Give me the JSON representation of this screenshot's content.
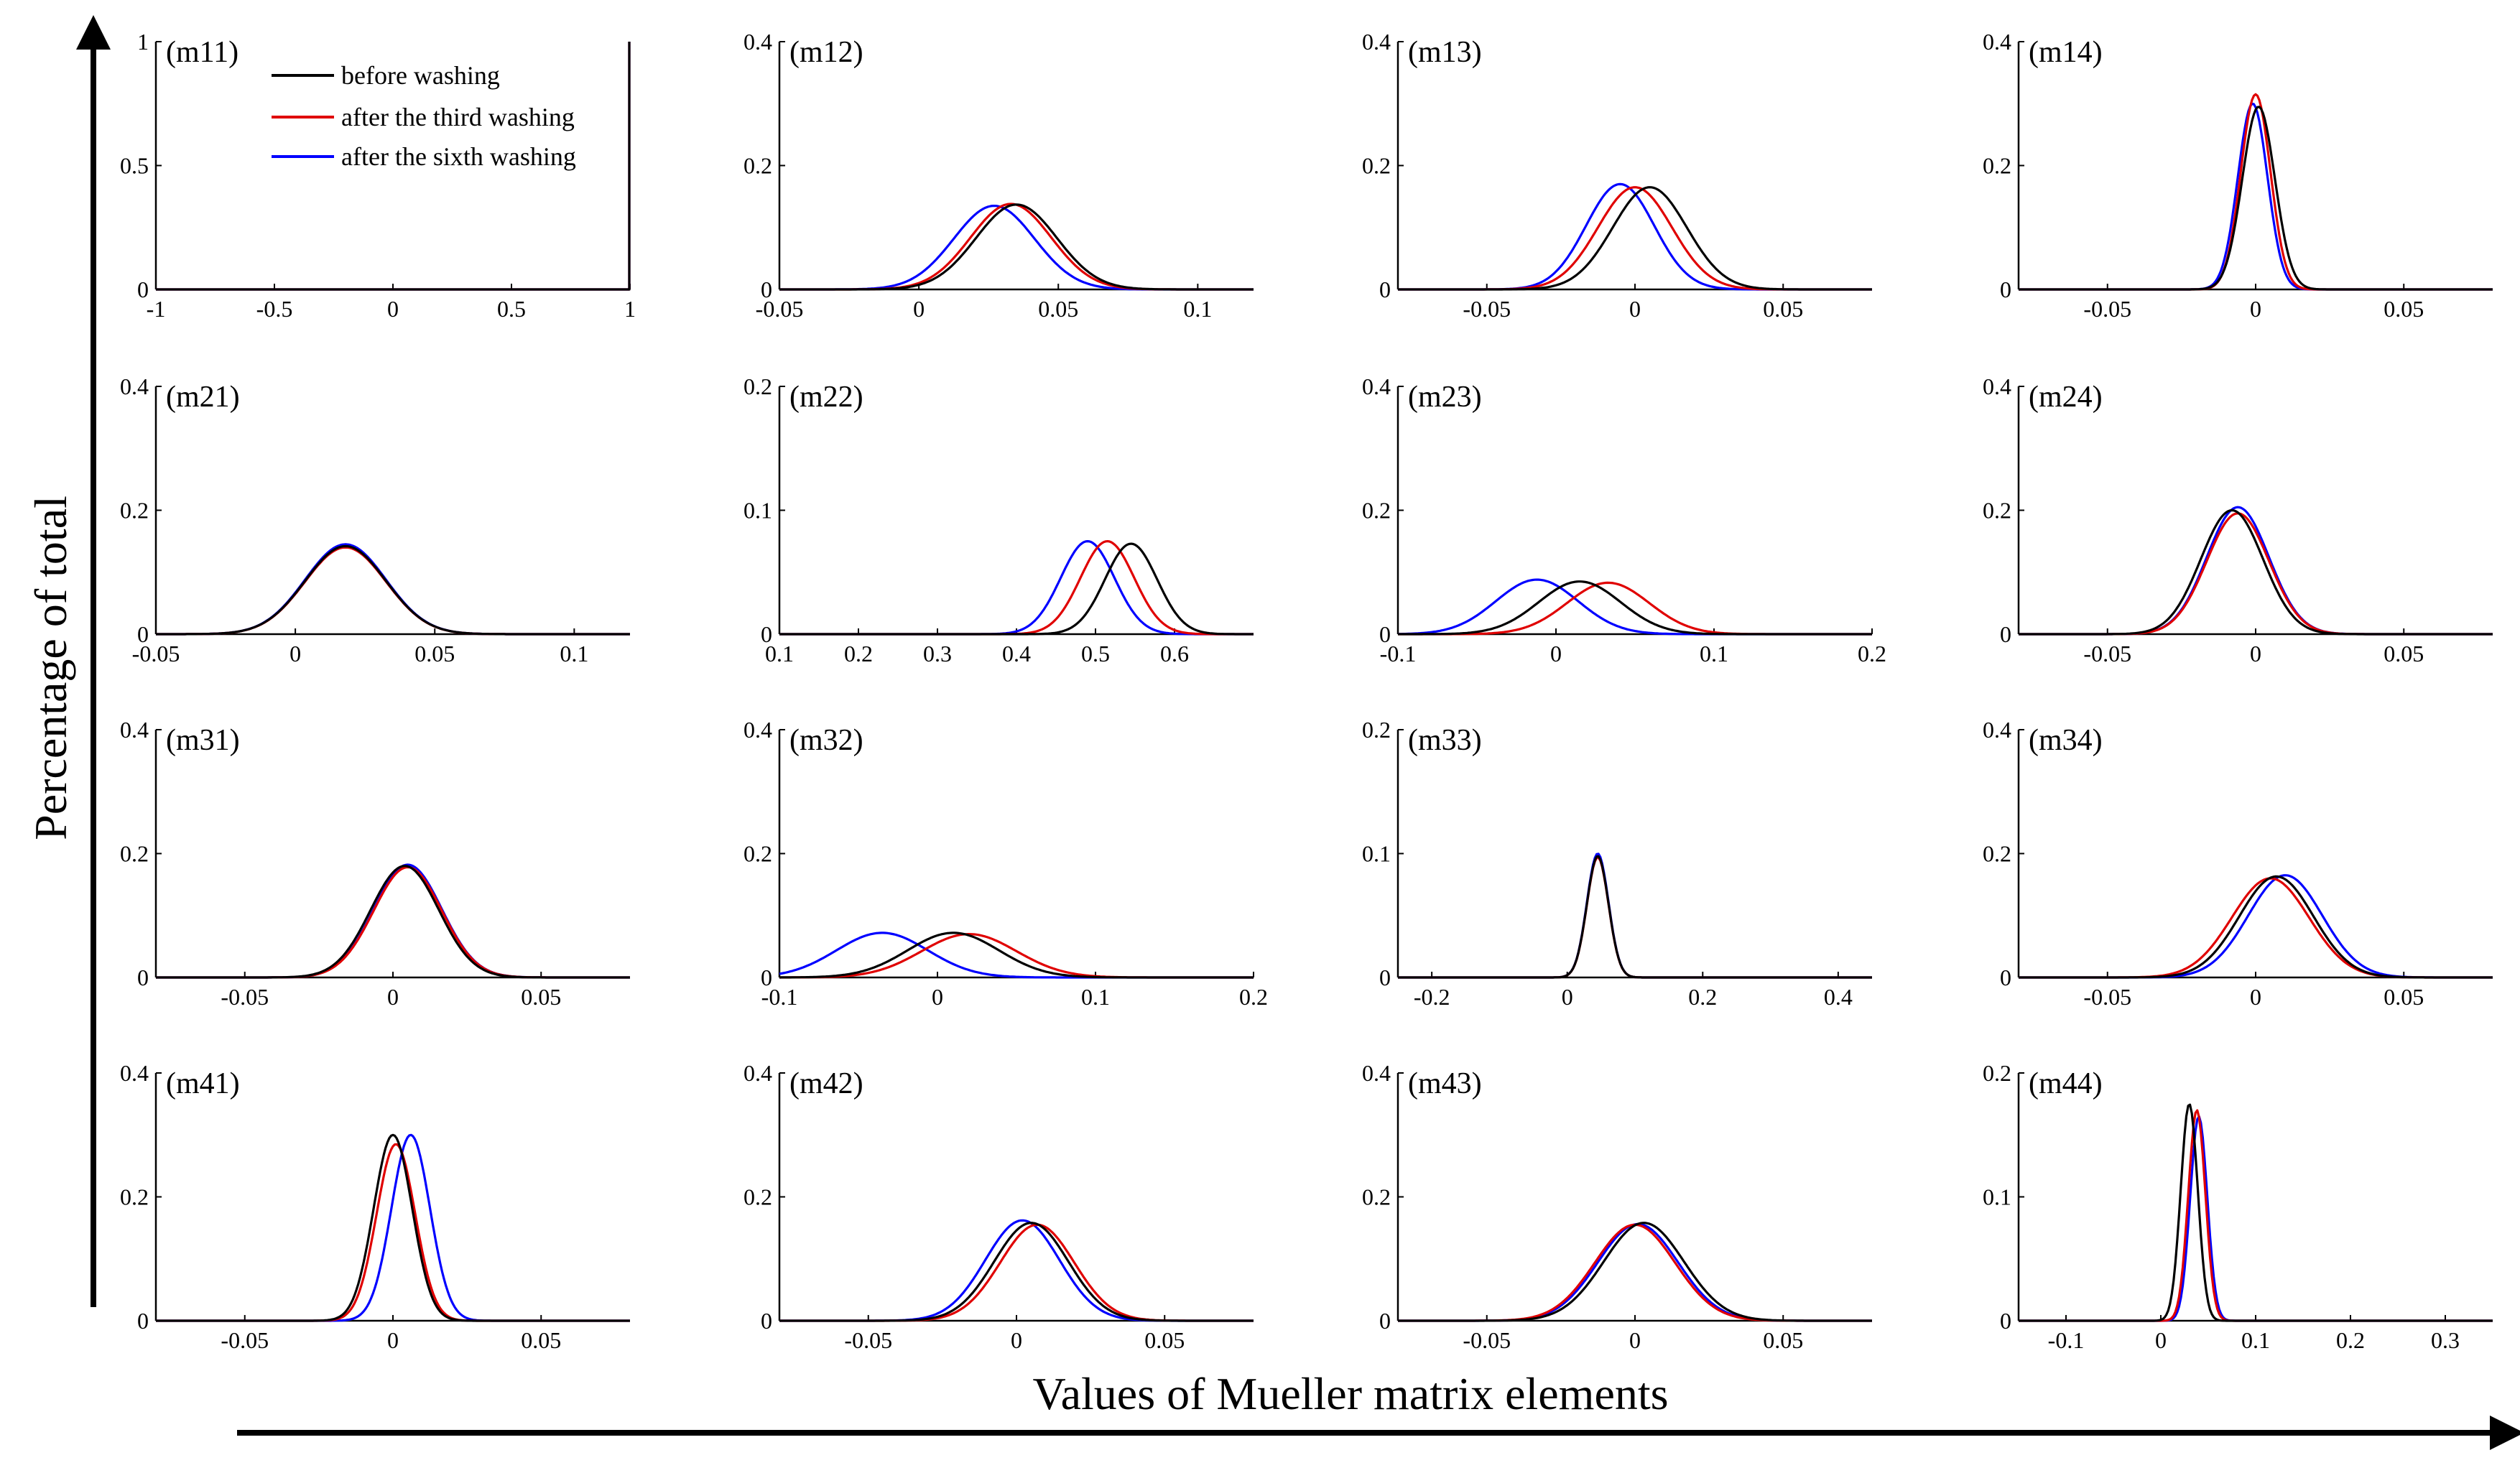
{
  "figure": {
    "xlabel": "Values of Mueller matrix elements",
    "ylabel": "Percentage of total"
  },
  "legend": [
    {
      "label": "before washing",
      "color": "#000000"
    },
    {
      "label": "after the third washing",
      "color": "#e00000"
    },
    {
      "label": "after the sixth washing",
      "color": "#0000ff"
    }
  ],
  "chart_data": [
    {
      "type": "line",
      "label": "(m11)",
      "xlim": [
        -1,
        1
      ],
      "ylim": [
        0,
        1
      ],
      "xticks": [
        -1,
        -0.5,
        0,
        0.5,
        1
      ],
      "xtick_labels": [
        "-1",
        "-0.5",
        "0",
        "0.5",
        "1"
      ],
      "yticks": [
        0,
        0.5,
        1
      ],
      "ytick_labels": [
        "0",
        "0.5",
        "1"
      ],
      "series": [
        {
          "kind": "spike",
          "at": 1,
          "height": 1.0
        },
        {
          "kind": "spike",
          "at": 1,
          "height": 1.0
        },
        {
          "kind": "spike",
          "at": 1,
          "height": 1.0
        }
      ]
    },
    {
      "type": "line",
      "label": "(m12)",
      "xlim": [
        -0.05,
        0.12
      ],
      "ylim": [
        0,
        0.4
      ],
      "xticks": [
        -0.05,
        0,
        0.05,
        0.1
      ],
      "xtick_labels": [
        "-0.05",
        "0",
        "0.05",
        "0.1"
      ],
      "yticks": [
        0,
        0.2,
        0.4
      ],
      "ytick_labels": [
        "0",
        "0.2",
        "0.4"
      ],
      "series": [
        {
          "mu": 0.035,
          "peak": 0.137,
          "sigma": 0.0145
        },
        {
          "mu": 0.033,
          "peak": 0.138,
          "sigma": 0.0145
        },
        {
          "mu": 0.027,
          "peak": 0.135,
          "sigma": 0.0145
        }
      ]
    },
    {
      "type": "line",
      "label": "(m13)",
      "xlim": [
        -0.08,
        0.08
      ],
      "ylim": [
        0,
        0.4
      ],
      "xticks": [
        -0.05,
        0,
        0.05
      ],
      "xtick_labels": [
        "-0.05",
        "0",
        "0.05"
      ],
      "yticks": [
        0,
        0.2,
        0.4
      ],
      "ytick_labels": [
        "0",
        "0.2",
        "0.4"
      ],
      "series": [
        {
          "mu": 0.005,
          "peak": 0.165,
          "sigma": 0.0125
        },
        {
          "mu": 0.0,
          "peak": 0.165,
          "sigma": 0.0125
        },
        {
          "mu": -0.005,
          "peak": 0.17,
          "sigma": 0.0115
        }
      ]
    },
    {
      "type": "line",
      "label": "(m14)",
      "xlim": [
        -0.08,
        0.08
      ],
      "ylim": [
        0,
        0.4
      ],
      "xticks": [
        -0.05,
        0,
        0.05
      ],
      "xtick_labels": [
        "-0.05",
        "0",
        "0.05"
      ],
      "yticks": [
        0,
        0.2,
        0.4
      ],
      "ytick_labels": [
        "0",
        "0.2",
        "0.4"
      ],
      "series": [
        {
          "mu": 0.001,
          "peak": 0.295,
          "sigma": 0.0055
        },
        {
          "mu": 0.0,
          "peak": 0.315,
          "sigma": 0.005
        },
        {
          "mu": -0.001,
          "peak": 0.3,
          "sigma": 0.005
        }
      ]
    },
    {
      "type": "line",
      "label": "(m21)",
      "xlim": [
        -0.05,
        0.12
      ],
      "ylim": [
        0,
        0.4
      ],
      "xticks": [
        -0.05,
        0,
        0.05,
        0.1
      ],
      "xtick_labels": [
        "-0.05",
        "0",
        "0.05",
        "0.1"
      ],
      "yticks": [
        0,
        0.2,
        0.4
      ],
      "ytick_labels": [
        "0",
        "0.2",
        "0.4"
      ],
      "series": [
        {
          "mu": 0.018,
          "peak": 0.142,
          "sigma": 0.0145
        },
        {
          "mu": 0.018,
          "peak": 0.14,
          "sigma": 0.0145
        },
        {
          "mu": 0.018,
          "peak": 0.145,
          "sigma": 0.0145
        }
      ]
    },
    {
      "type": "line",
      "label": "(m22)",
      "xlim": [
        0.1,
        0.7
      ],
      "ylim": [
        0,
        0.2
      ],
      "xticks": [
        0.1,
        0.2,
        0.3,
        0.4,
        0.5,
        0.6
      ],
      "xtick_labels": [
        "0.1",
        "0.2",
        "0.3",
        "0.4",
        "0.5",
        "0.6"
      ],
      "yticks": [
        0,
        0.1,
        0.2
      ],
      "ytick_labels": [
        "0",
        "0.1",
        "0.2"
      ],
      "series": [
        {
          "mu": 0.545,
          "peak": 0.073,
          "sigma": 0.033
        },
        {
          "mu": 0.515,
          "peak": 0.075,
          "sigma": 0.034
        },
        {
          "mu": 0.49,
          "peak": 0.075,
          "sigma": 0.034
        }
      ]
    },
    {
      "type": "line",
      "label": "(m23)",
      "xlim": [
        -0.1,
        0.2
      ],
      "ylim": [
        0,
        0.4
      ],
      "xticks": [
        -0.1,
        0,
        0.1,
        0.2
      ],
      "xtick_labels": [
        "-0.1",
        "0",
        "0.1",
        "0.2"
      ],
      "yticks": [
        0,
        0.2,
        0.4
      ],
      "ytick_labels": [
        "0",
        "0.2",
        "0.4"
      ],
      "series": [
        {
          "mu": 0.015,
          "peak": 0.085,
          "sigma": 0.026
        },
        {
          "mu": 0.033,
          "peak": 0.083,
          "sigma": 0.026
        },
        {
          "mu": -0.012,
          "peak": 0.088,
          "sigma": 0.026
        }
      ]
    },
    {
      "type": "line",
      "label": "(m24)",
      "xlim": [
        -0.08,
        0.08
      ],
      "ylim": [
        0,
        0.4
      ],
      "xticks": [
        -0.05,
        0,
        0.05
      ],
      "xtick_labels": [
        "-0.05",
        "0",
        "0.05"
      ],
      "yticks": [
        0,
        0.2,
        0.4
      ],
      "ytick_labels": [
        "0",
        "0.2",
        "0.4"
      ],
      "series": [
        {
          "mu": -0.008,
          "peak": 0.2,
          "sigma": 0.0105
        },
        {
          "mu": -0.006,
          "peak": 0.195,
          "sigma": 0.0105
        },
        {
          "mu": -0.006,
          "peak": 0.205,
          "sigma": 0.0105
        }
      ]
    },
    {
      "type": "line",
      "label": "(m31)",
      "xlim": [
        -0.08,
        0.08
      ],
      "ylim": [
        0,
        0.4
      ],
      "xticks": [
        -0.05,
        0,
        0.05
      ],
      "xtick_labels": [
        "-0.05",
        "0",
        "0.05"
      ],
      "yticks": [
        0,
        0.2,
        0.4
      ],
      "ytick_labels": [
        "0",
        "0.2",
        "0.4"
      ],
      "series": [
        {
          "mu": 0.004,
          "peak": 0.18,
          "sigma": 0.0115
        },
        {
          "mu": 0.005,
          "peak": 0.178,
          "sigma": 0.0115
        },
        {
          "mu": 0.005,
          "peak": 0.182,
          "sigma": 0.0115
        }
      ]
    },
    {
      "type": "line",
      "label": "(m32)",
      "xlim": [
        -0.1,
        0.2
      ],
      "ylim": [
        0,
        0.4
      ],
      "xticks": [
        -0.1,
        0,
        0.1,
        0.2
      ],
      "xtick_labels": [
        "-0.1",
        "0",
        "0.1",
        "0.2"
      ],
      "yticks": [
        0,
        0.2,
        0.4
      ],
      "ytick_labels": [
        "0",
        "0.2",
        "0.4"
      ],
      "series": [
        {
          "mu": 0.01,
          "peak": 0.072,
          "sigma": 0.029
        },
        {
          "mu": 0.02,
          "peak": 0.07,
          "sigma": 0.03
        },
        {
          "mu": -0.035,
          "peak": 0.072,
          "sigma": 0.029
        }
      ]
    },
    {
      "type": "line",
      "label": "(m33)",
      "xlim": [
        -0.25,
        0.45
      ],
      "ylim": [
        0,
        0.2
      ],
      "xticks": [
        -0.2,
        0,
        0.2,
        0.4
      ],
      "xtick_labels": [
        "-0.2",
        "0",
        "0.2",
        "0.4"
      ],
      "yticks": [
        0,
        0.1,
        0.2
      ],
      "ytick_labels": [
        "0",
        "0.1",
        "0.2"
      ],
      "series": [
        {
          "mu": 0.045,
          "peak": 0.098,
          "sigma": 0.016
        },
        {
          "mu": 0.045,
          "peak": 0.097,
          "sigma": 0.016
        },
        {
          "mu": 0.045,
          "peak": 0.1,
          "sigma": 0.016
        }
      ]
    },
    {
      "type": "line",
      "label": "(m34)",
      "xlim": [
        -0.08,
        0.08
      ],
      "ylim": [
        0,
        0.4
      ],
      "xticks": [
        -0.05,
        0,
        0.05
      ],
      "xtick_labels": [
        "-0.05",
        "0",
        "0.05"
      ],
      "yticks": [
        0,
        0.2,
        0.4
      ],
      "ytick_labels": [
        "0",
        "0.2",
        "0.4"
      ],
      "series": [
        {
          "mu": 0.007,
          "peak": 0.163,
          "sigma": 0.0125
        },
        {
          "mu": 0.005,
          "peak": 0.16,
          "sigma": 0.013
        },
        {
          "mu": 0.01,
          "peak": 0.165,
          "sigma": 0.0125
        }
      ]
    },
    {
      "type": "line",
      "label": "(m41)",
      "xlim": [
        -0.08,
        0.08
      ],
      "ylim": [
        0,
        0.4
      ],
      "xticks": [
        -0.05,
        0,
        0.05
      ],
      "xtick_labels": [
        "-0.05",
        "0",
        "0.05"
      ],
      "yticks": [
        0,
        0.2,
        0.4
      ],
      "ytick_labels": [
        "0",
        "0.2",
        "0.4"
      ],
      "series": [
        {
          "mu": 0.0,
          "peak": 0.3,
          "sigma": 0.0065
        },
        {
          "mu": 0.001,
          "peak": 0.285,
          "sigma": 0.0065
        },
        {
          "mu": 0.006,
          "peak": 0.3,
          "sigma": 0.0065
        }
      ]
    },
    {
      "type": "line",
      "label": "(m42)",
      "xlim": [
        -0.08,
        0.08
      ],
      "ylim": [
        0,
        0.4
      ],
      "xticks": [
        -0.05,
        0,
        0.05
      ],
      "xtick_labels": [
        "-0.05",
        "0",
        "0.05"
      ],
      "yticks": [
        0,
        0.2,
        0.4
      ],
      "ytick_labels": [
        "0",
        "0.2",
        "0.4"
      ],
      "series": [
        {
          "mu": 0.005,
          "peak": 0.158,
          "sigma": 0.0125
        },
        {
          "mu": 0.007,
          "peak": 0.155,
          "sigma": 0.0125
        },
        {
          "mu": 0.002,
          "peak": 0.162,
          "sigma": 0.0125
        }
      ]
    },
    {
      "type": "line",
      "label": "(m43)",
      "xlim": [
        -0.08,
        0.08
      ],
      "ylim": [
        0,
        0.4
      ],
      "xticks": [
        -0.05,
        0,
        0.05
      ],
      "xtick_labels": [
        "-0.05",
        "0",
        "0.05"
      ],
      "yticks": [
        0,
        0.2,
        0.4
      ],
      "ytick_labels": [
        "0",
        "0.2",
        "0.4"
      ],
      "series": [
        {
          "mu": 0.003,
          "peak": 0.158,
          "sigma": 0.0135
        },
        {
          "mu": 0.0,
          "peak": 0.155,
          "sigma": 0.0135
        },
        {
          "mu": 0.001,
          "peak": 0.156,
          "sigma": 0.0135
        }
      ]
    },
    {
      "type": "line",
      "label": "(m44)",
      "xlim": [
        -0.15,
        0.35
      ],
      "ylim": [
        0,
        0.2
      ],
      "xticks": [
        -0.1,
        0,
        0.1,
        0.2,
        0.3
      ],
      "xtick_labels": [
        "-0.1",
        "0",
        "0.1",
        "0.2",
        "0.3"
      ],
      "yticks": [
        0,
        0.1,
        0.2
      ],
      "ytick_labels": [
        "0",
        "0.1",
        "0.2"
      ],
      "series": [
        {
          "mu": 0.03,
          "peak": 0.175,
          "sigma": 0.009
        },
        {
          "mu": 0.038,
          "peak": 0.17,
          "sigma": 0.009
        },
        {
          "mu": 0.04,
          "peak": 0.165,
          "sigma": 0.009
        }
      ]
    }
  ]
}
